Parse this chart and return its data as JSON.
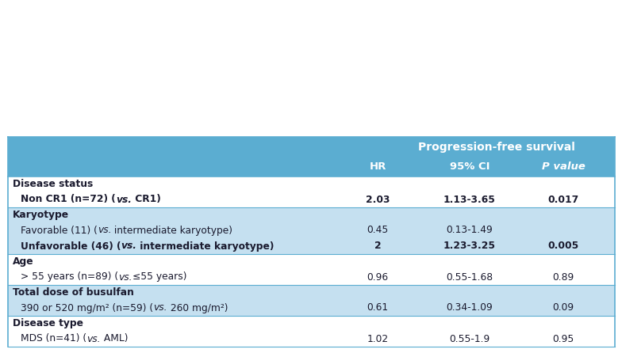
{
  "header_bg": "#5badd1",
  "row_bg_blue": "#c5e0f0",
  "row_bg_white": "#ffffff",
  "border_color": "#5badd1",
  "text_color": "#1a1a2e",
  "header_text_color": "#ffffff",
  "header_font_size": 9.5,
  "body_font_size": 8.8,
  "sections": [
    {
      "cat": "Disease status",
      "bg": "#ffffff",
      "rows": [
        {
          "label": "Non CR1 (n=72) (",
          "vs": "vs.",
          "label2": " CR1)",
          "hr": "2.03",
          "ci": "1.13-3.65",
          "pval": "0.017",
          "bold": true
        }
      ]
    },
    {
      "cat": "Karyotype",
      "bg": "#c5e0f0",
      "rows": [
        {
          "label": "Favorable (11) (",
          "vs": "vs.",
          "label2": " intermediate karyotype)",
          "hr": "0.45",
          "ci": "0.13-1.49",
          "pval": "",
          "bold": false
        },
        {
          "label": "Unfavorable (46) (",
          "vs": "vs.",
          "label2": " intermediate karyotype)",
          "hr": "2",
          "ci": "1.23-3.25",
          "pval": "0.005",
          "bold": true
        }
      ]
    },
    {
      "cat": "Age",
      "bg": "#ffffff",
      "rows": [
        {
          "label": "> 55 years (n=89) (",
          "vs": "vs.",
          "label2": "≤55 years)",
          "hr": "0.96",
          "ci": "0.55-1.68",
          "pval": "0.89",
          "bold": false
        }
      ]
    },
    {
      "cat": "Total dose of busulfan",
      "bg": "#c5e0f0",
      "rows": [
        {
          "label": "390 or 520 mg/m² (n=59) (",
          "vs": "vs.",
          "label2": " 260 mg/m²)",
          "hr": "0.61",
          "ci": "0.34-1.09",
          "pval": "0.09",
          "bold": false
        }
      ]
    },
    {
      "cat": "Disease type",
      "bg": "#ffffff",
      "rows": [
        {
          "label": "MDS (n=41) (",
          "vs": "vs.",
          "label2": " AML)",
          "hr": "1.02",
          "ci": "0.55-1.9",
          "pval": "0.95",
          "bold": false
        }
      ]
    }
  ]
}
